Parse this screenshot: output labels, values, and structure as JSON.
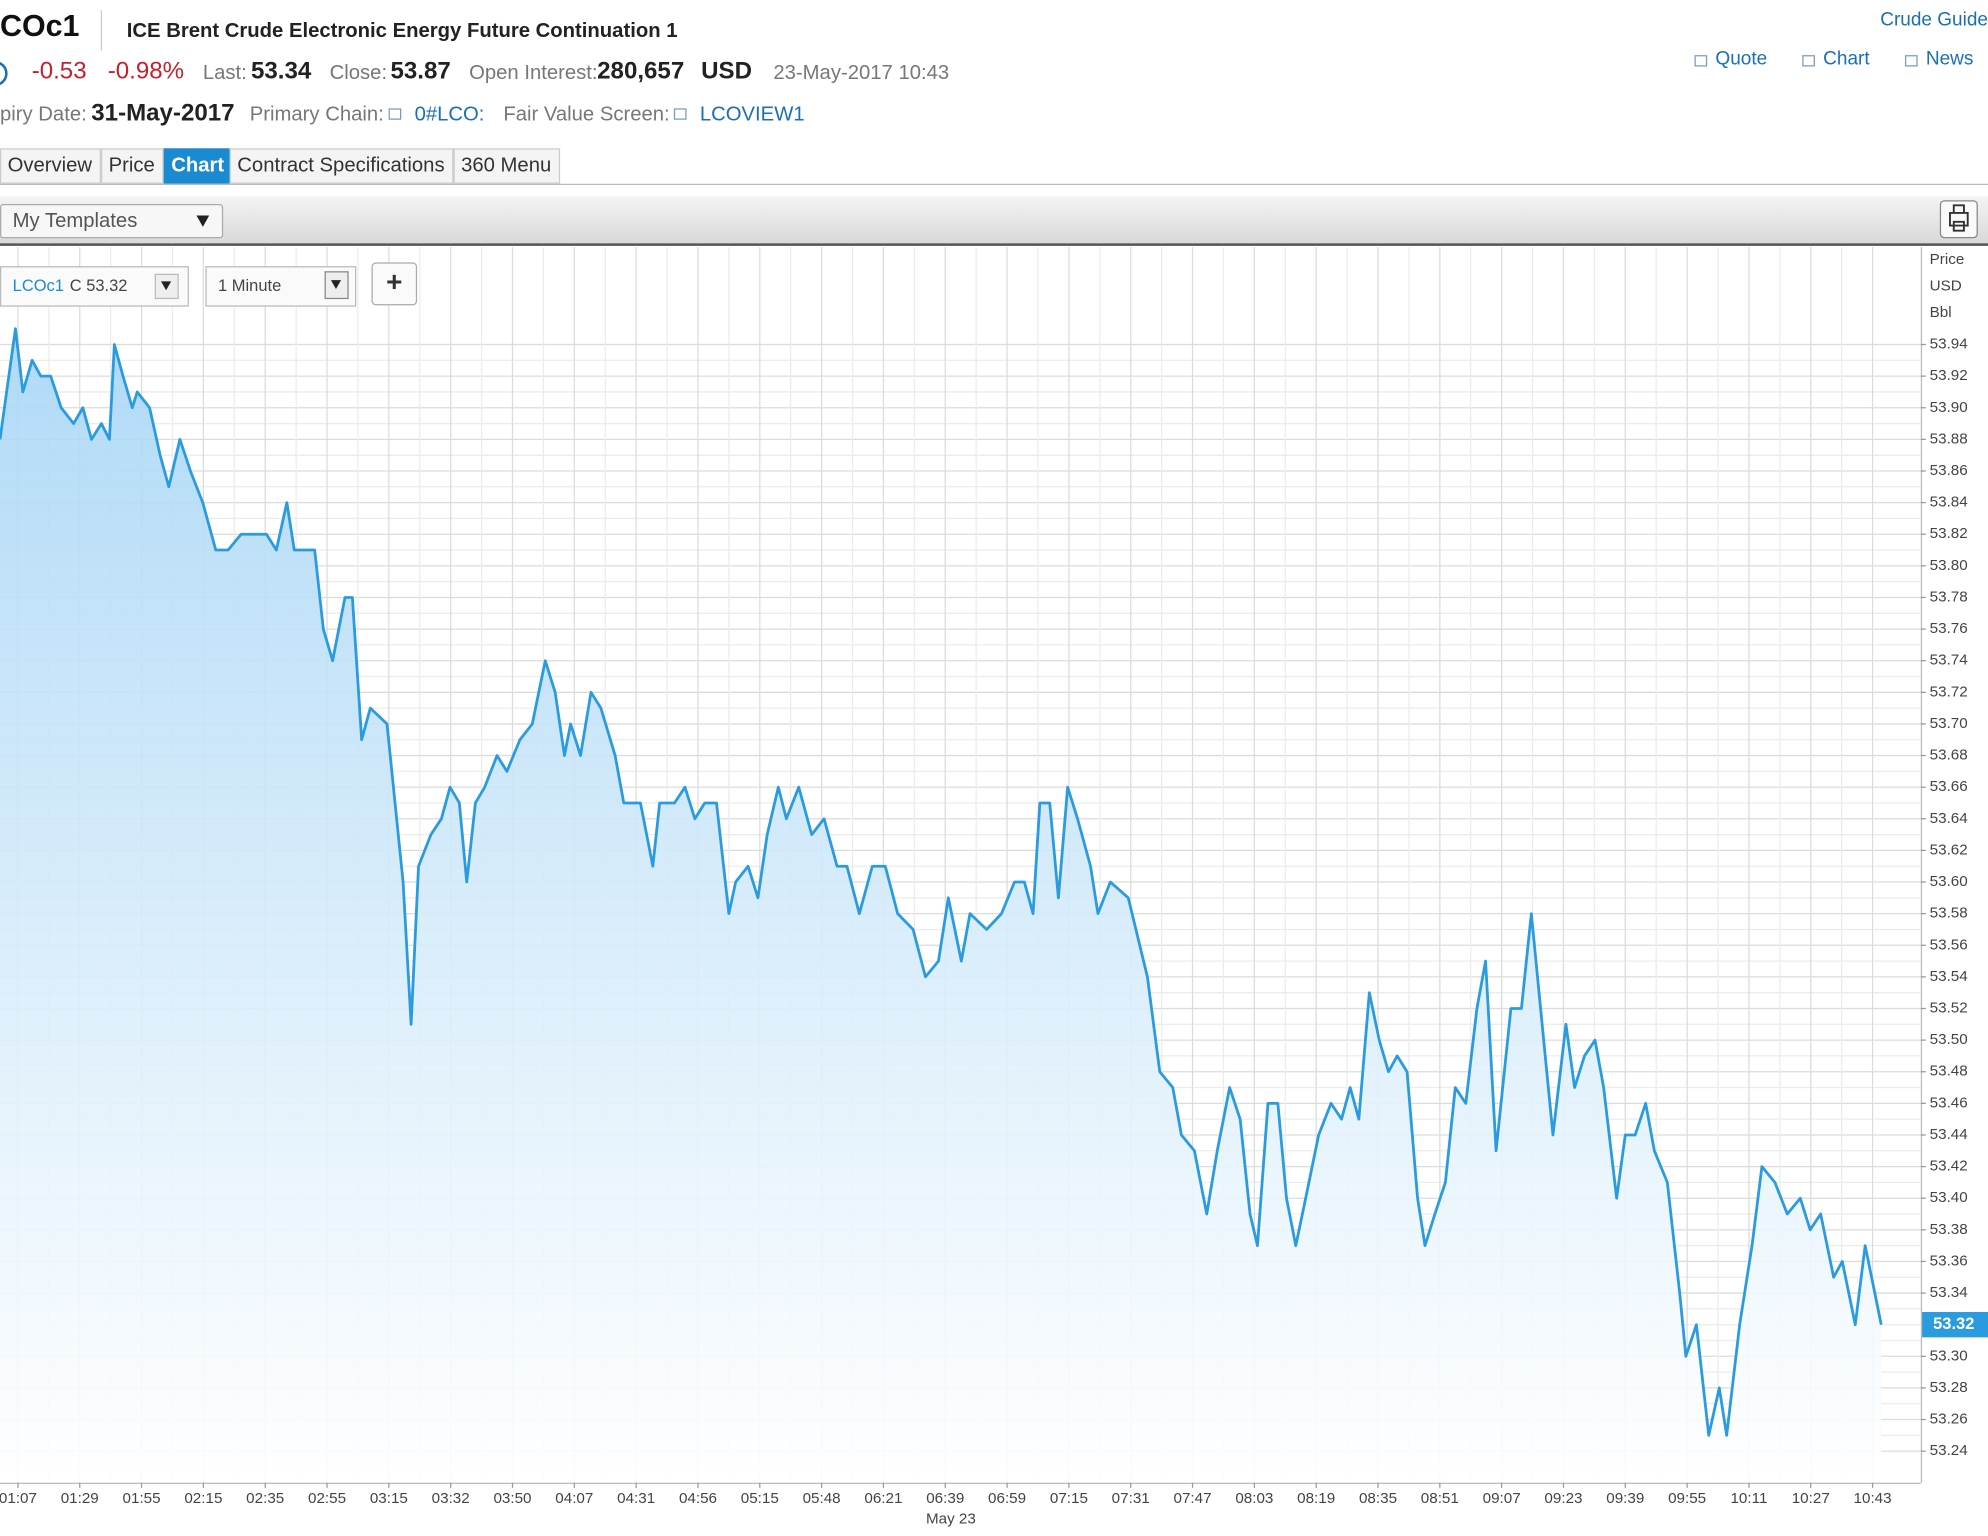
{
  "header": {
    "ric": "COc1",
    "name": "ICE Brent Crude Electronic Energy Future Continuation 1",
    "net_change": "-0.53",
    "pct_change": "-0.98%",
    "last_label": "Last:",
    "last": "53.34",
    "close_label": "Close:",
    "close": "53.87",
    "oi_label": "Open Interest:",
    "oi": "280,657",
    "currency": "USD",
    "timestamp": "23-May-2017 10:43",
    "expiry_label": "piry Date:",
    "expiry": "31-May-2017",
    "chain_label": "Primary Chain:",
    "chain": "0#LCO:",
    "fv_label": "Fair Value Screen:",
    "fv": "LCOVIEW1"
  },
  "links": {
    "guide": "Crude Guide",
    "items": [
      "Quote",
      "Chart",
      "News"
    ]
  },
  "tabs": [
    "Overview",
    "Price",
    "Chart",
    "Contract Specifications",
    "360 Menu"
  ],
  "active_tab": 2,
  "toolbar": {
    "templates": "My Templates"
  },
  "chart_controls": {
    "close_prefix": "C",
    "interval": "1 Minute",
    "add": "+"
  },
  "chart_data": {
    "type": "line",
    "y_unit_labels": [
      "Price",
      "USD",
      "Bbl"
    ],
    "date_label": "May 23",
    "xlim": [
      -0.29,
      30.78
    ],
    "xticks": [
      {
        "value": 0,
        "label": "01:07"
      },
      {
        "value": 1,
        "label": "01:29"
      },
      {
        "value": 2,
        "label": "01:55"
      },
      {
        "value": 3,
        "label": "02:15"
      },
      {
        "value": 4,
        "label": "02:35"
      },
      {
        "value": 5,
        "label": "02:55"
      },
      {
        "value": 6,
        "label": "03:15"
      },
      {
        "value": 7,
        "label": "03:32"
      },
      {
        "value": 8,
        "label": "03:50"
      },
      {
        "value": 9,
        "label": "04:07"
      },
      {
        "value": 10,
        "label": "04:31"
      },
      {
        "value": 11,
        "label": "04:56"
      },
      {
        "value": 12,
        "label": "05:15"
      },
      {
        "value": 13,
        "label": "05:48"
      },
      {
        "value": 14,
        "label": "06:21"
      },
      {
        "value": 15,
        "label": "06:39"
      },
      {
        "value": 16,
        "label": "06:59"
      },
      {
        "value": 17,
        "label": "07:15"
      },
      {
        "value": 18,
        "label": "07:31"
      },
      {
        "value": 19,
        "label": "07:47"
      },
      {
        "value": 20,
        "label": "08:03"
      },
      {
        "value": 21,
        "label": "08:19"
      },
      {
        "value": 22,
        "label": "08:35"
      },
      {
        "value": 23,
        "label": "08:51"
      },
      {
        "value": 24,
        "label": "09:07"
      },
      {
        "value": 25,
        "label": "09:23"
      },
      {
        "value": 26,
        "label": "09:39"
      },
      {
        "value": 27,
        "label": "09:55"
      },
      {
        "value": 28,
        "label": "10:11"
      },
      {
        "value": 29,
        "label": "10:27"
      },
      {
        "value": 30,
        "label": "10:43"
      }
    ],
    "ylim": [
      53.22,
      54.0
    ],
    "yticks": [
      53.24,
      53.26,
      53.28,
      {
        "value": 53.3,
        "label": "53.30"
      },
      53.34,
      53.36,
      53.38,
      {
        "value": 53.4,
        "label": "53.40"
      },
      53.42,
      53.44,
      53.46,
      53.48,
      {
        "value": 53.5,
        "label": "53.50"
      },
      53.52,
      53.54,
      53.56,
      53.58,
      {
        "value": 53.6,
        "label": "53.60"
      },
      53.62,
      53.64,
      53.66,
      53.68,
      {
        "value": 53.7,
        "label": "53.70"
      },
      53.72,
      53.74,
      53.76,
      53.78,
      {
        "value": 53.8,
        "label": "53.80"
      },
      53.82,
      53.84,
      53.86,
      53.88,
      {
        "value": 53.9,
        "label": "53.90"
      },
      53.92,
      53.94
    ],
    "grid": true,
    "series": [
      {
        "name": "LCOc1",
        "color": "#2b9be0",
        "x": [
          -0.29,
          -0.04,
          0.08,
          0.23,
          0.37,
          0.53,
          0.7,
          0.9,
          1.05,
          1.19,
          1.35,
          1.48,
          1.56,
          1.7,
          1.85,
          1.93,
          2.13,
          2.3,
          2.44,
          2.62,
          2.79,
          2.99,
          3.2,
          3.4,
          3.61,
          3.81,
          4.02,
          4.18,
          4.35,
          4.47,
          4.8,
          4.94,
          5.09,
          5.29,
          5.41,
          5.56,
          5.7,
          5.97,
          6.23,
          6.36,
          6.48,
          6.68,
          6.85,
          6.99,
          7.14,
          7.26,
          7.4,
          7.55,
          7.75,
          7.91,
          8.12,
          8.32,
          8.53,
          8.69,
          8.84,
          8.94,
          9.1,
          9.27,
          9.43,
          9.66,
          9.8,
          10.07,
          10.27,
          10.38,
          10.62,
          10.79,
          10.95,
          11.11,
          11.3,
          11.5,
          11.61,
          11.81,
          11.97,
          12.12,
          12.3,
          12.43,
          12.63,
          12.84,
          13.04,
          13.25,
          13.41,
          13.61,
          13.82,
          14.03,
          14.23,
          14.48,
          14.68,
          14.89,
          15.05,
          15.26,
          15.4,
          15.67,
          15.91,
          16.12,
          16.28,
          16.42,
          16.53,
          16.69,
          16.83,
          16.98,
          17.14,
          17.35,
          17.47,
          17.67,
          17.96,
          18.27,
          18.47,
          18.68,
          18.82,
          19.03,
          19.23,
          19.4,
          19.6,
          19.77,
          19.93,
          20.05,
          20.22,
          20.38,
          20.52,
          20.67,
          20.83,
          21.04,
          21.24,
          21.41,
          21.55,
          21.69,
          21.86,
          22.02,
          22.17,
          22.31,
          22.47,
          22.64,
          22.76,
          22.92,
          23.09,
          23.25,
          23.42,
          23.6,
          23.74,
          23.91,
          24.15,
          24.32,
          24.48,
          24.63,
          24.83,
          25.04,
          25.18,
          25.34,
          25.51,
          25.65,
          25.86,
          26.0,
          26.16,
          26.33,
          26.47,
          26.68,
          26.88,
          26.98,
          27.15,
          27.35,
          27.52,
          27.64,
          27.85,
          28.05,
          28.21,
          28.42,
          28.62,
          28.83,
          28.99,
          29.16,
          29.37,
          29.51,
          29.72,
          29.88,
          30.14
        ],
        "values": [
          53.88,
          53.95,
          53.91,
          53.93,
          53.92,
          53.92,
          53.9,
          53.89,
          53.9,
          53.88,
          53.89,
          53.88,
          53.94,
          53.92,
          53.9,
          53.91,
          53.9,
          53.87,
          53.85,
          53.88,
          53.86,
          53.84,
          53.81,
          53.81,
          53.82,
          53.82,
          53.82,
          53.81,
          53.84,
          53.81,
          53.81,
          53.76,
          53.74,
          53.78,
          53.78,
          53.69,
          53.71,
          53.7,
          53.6,
          53.51,
          53.61,
          53.63,
          53.64,
          53.66,
          53.65,
          53.6,
          53.65,
          53.66,
          53.68,
          53.67,
          53.69,
          53.7,
          53.74,
          53.72,
          53.68,
          53.7,
          53.68,
          53.72,
          53.71,
          53.68,
          53.65,
          53.65,
          53.61,
          53.65,
          53.65,
          53.66,
          53.64,
          53.65,
          53.65,
          53.58,
          53.6,
          53.61,
          53.59,
          53.63,
          53.66,
          53.64,
          53.66,
          53.63,
          53.64,
          53.61,
          53.61,
          53.58,
          53.61,
          53.61,
          53.58,
          53.57,
          53.54,
          53.55,
          53.59,
          53.55,
          53.58,
          53.57,
          53.58,
          53.6,
          53.6,
          53.58,
          53.65,
          53.65,
          53.59,
          53.66,
          53.64,
          53.61,
          53.58,
          53.6,
          53.59,
          53.54,
          53.48,
          53.47,
          53.44,
          53.43,
          53.39,
          53.43,
          53.47,
          53.45,
          53.39,
          53.37,
          53.46,
          53.46,
          53.4,
          53.37,
          53.4,
          53.44,
          53.46,
          53.45,
          53.47,
          53.45,
          53.53,
          53.5,
          53.48,
          53.49,
          53.48,
          53.4,
          53.37,
          53.39,
          53.41,
          53.47,
          53.46,
          53.52,
          53.55,
          53.43,
          53.52,
          53.52,
          53.58,
          53.52,
          53.44,
          53.51,
          53.47,
          53.49,
          53.5,
          53.47,
          53.4,
          53.44,
          53.44,
          53.46,
          53.43,
          53.41,
          53.34,
          53.3,
          53.32,
          53.25,
          53.28,
          53.25,
          53.32,
          53.37,
          53.42,
          53.41,
          53.39,
          53.4,
          53.38,
          53.39,
          53.35,
          53.36,
          53.32,
          53.37,
          53.32
        ]
      }
    ]
  }
}
